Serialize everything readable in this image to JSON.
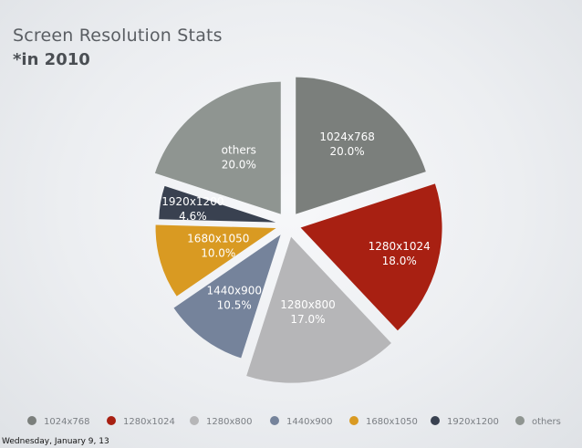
{
  "chart_data": {
    "type": "pie",
    "title": "Screen Resolution Stats",
    "subtitle": "*in 2010",
    "categories": [
      "1024x768",
      "1280x1024",
      "1280x800",
      "1440x900",
      "1680x1050",
      "1920x1200",
      "others"
    ],
    "values": [
      20.0,
      18.0,
      17.0,
      10.5,
      10.0,
      4.6,
      20.0
    ],
    "value_labels": [
      "20.0%",
      "18.0%",
      "17.0%",
      "10.5%",
      "10.0%",
      "4.6%",
      "20.0%"
    ],
    "colors": [
      "#7b7f7c",
      "#a82012",
      "#b6b6b8",
      "#75839b",
      "#d99a22",
      "#394150",
      "#8f9591"
    ],
    "legend_position": "bottom"
  },
  "footer": {
    "date": "Wednesday, January 9, 13"
  }
}
